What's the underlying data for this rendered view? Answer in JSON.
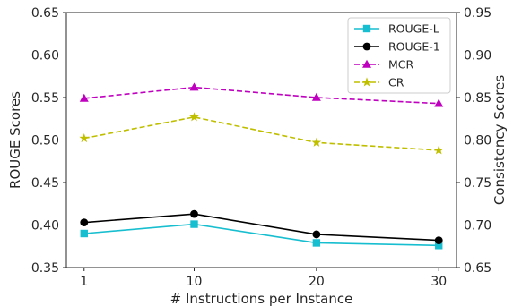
{
  "chart_data": {
    "type": "line",
    "xlabel": "# Instructions per Instance",
    "x": [
      1,
      10,
      20,
      30
    ],
    "x_tick_labels": [
      "1",
      "10",
      "20",
      "30"
    ],
    "y_left": {
      "label": "ROUGE Scores",
      "lim": [
        0.35,
        0.65
      ],
      "ticks": [
        0.35,
        0.4,
        0.45,
        0.5,
        0.55,
        0.6,
        0.65
      ],
      "tick_labels": [
        "0.35",
        "0.40",
        "0.45",
        "0.50",
        "0.55",
        "0.60",
        "0.65"
      ]
    },
    "y_right": {
      "label": "Consistency Scores",
      "lim": [
        0.65,
        0.95
      ],
      "ticks": [
        0.65,
        0.7,
        0.75,
        0.8,
        0.85,
        0.9,
        0.95
      ],
      "tick_labels": [
        "0.65",
        "0.70",
        "0.75",
        "0.80",
        "0.85",
        "0.90",
        "0.95"
      ]
    },
    "grid": false,
    "legend_position": "top-right",
    "series": [
      {
        "name": "ROUGE-L",
        "axis": "left",
        "values": [
          0.39,
          0.401,
          0.379,
          0.376
        ],
        "color": "#17becf",
        "dash": "solid",
        "marker": "square"
      },
      {
        "name": "ROUGE-1",
        "axis": "left",
        "values": [
          0.403,
          0.413,
          0.389,
          0.382
        ],
        "color": "#000000",
        "dash": "solid",
        "marker": "circle"
      },
      {
        "name": "MCR",
        "axis": "right",
        "values": [
          0.849,
          0.862,
          0.85,
          0.843
        ],
        "color": "#bf00bf",
        "dash": "dashed",
        "marker": "triangle"
      },
      {
        "name": "CR",
        "axis": "right",
        "values": [
          0.802,
          0.827,
          0.797,
          0.788
        ],
        "color": "#bfbf00",
        "dash": "dashed",
        "marker": "star"
      }
    ]
  }
}
